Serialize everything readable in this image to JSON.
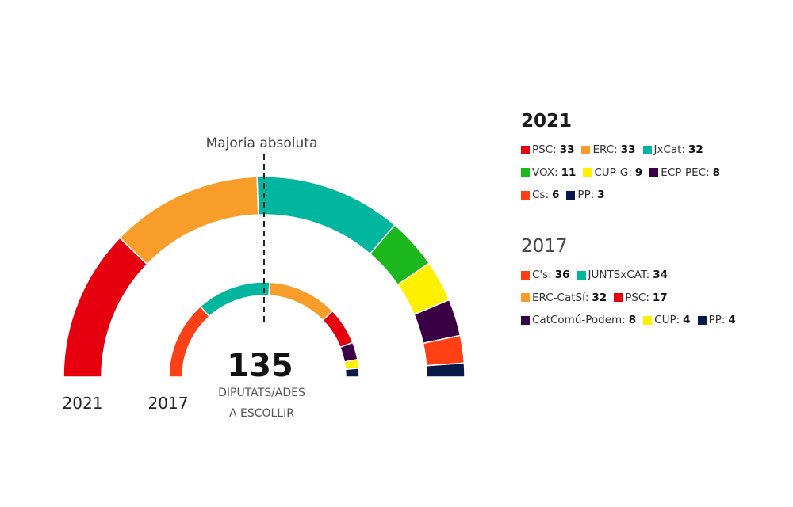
{
  "chart_data": {
    "type": "pie",
    "subtype": "parliament-semicircle",
    "total_seats": 135,
    "total_label": "135",
    "total_caption": [
      "DIPUTATS/ADES",
      "A ESCOLLIR"
    ],
    "majority_label": "Majoria absoluta",
    "majority_seats": 68,
    "series": [
      {
        "name": "2021",
        "ring": "outer",
        "parties": [
          {
            "name": "PSC",
            "seats": 33,
            "color": "#e6000f"
          },
          {
            "name": "ERC",
            "seats": 33,
            "color": "#f99d2a"
          },
          {
            "name": "JxCat",
            "seats": 32,
            "color": "#00b69e"
          },
          {
            "name": "VOX",
            "seats": 11,
            "color": "#1cb71c"
          },
          {
            "name": "CUP-G",
            "seats": 9,
            "color": "#fff000"
          },
          {
            "name": "ECP-PEC",
            "seats": 8,
            "color": "#3a0046"
          },
          {
            "name": "Cs",
            "seats": 6,
            "color": "#ff4014"
          },
          {
            "name": "PP",
            "seats": 3,
            "color": "#0a1848"
          }
        ],
        "legend_rows": [
          [
            0,
            1,
            2
          ],
          [
            3,
            4,
            5
          ],
          [
            6,
            7
          ]
        ]
      },
      {
        "name": "2017",
        "ring": "inner",
        "parties": [
          {
            "name": "C's",
            "seats": 36,
            "color": "#ff4014"
          },
          {
            "name": "JUNTSxCAT",
            "seats": 34,
            "color": "#00b69e"
          },
          {
            "name": "ERC-CatSí",
            "seats": 32,
            "color": "#f99d2a"
          },
          {
            "name": "PSC",
            "seats": 17,
            "color": "#e6000f"
          },
          {
            "name": "CatComú-Podem",
            "seats": 8,
            "color": "#3a0046"
          },
          {
            "name": "CUP",
            "seats": 4,
            "color": "#fff000"
          },
          {
            "name": "PP",
            "seats": 4,
            "color": "#0a1848"
          }
        ],
        "legend_rows": [
          [
            0,
            1
          ],
          [
            2,
            3
          ],
          [
            4,
            5,
            6
          ]
        ]
      }
    ]
  }
}
